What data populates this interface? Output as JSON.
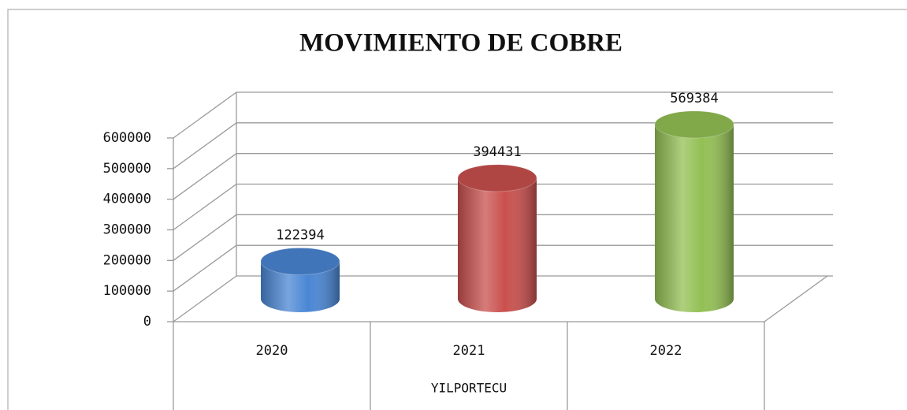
{
  "chart_data": {
    "type": "bar3d",
    "title": "MOVIMIENTO DE COBRE",
    "categories": [
      "2020",
      "2021",
      "2022"
    ],
    "values": [
      122394,
      394431,
      569384
    ],
    "colors": [
      "#4a86d4",
      "#c9504d",
      "#93c054"
    ],
    "xlabel": "YILPORTECU",
    "ylim": [
      0,
      600000
    ],
    "yticks": [
      0,
      100000,
      200000,
      300000,
      400000,
      500000,
      600000
    ],
    "grid": true
  }
}
